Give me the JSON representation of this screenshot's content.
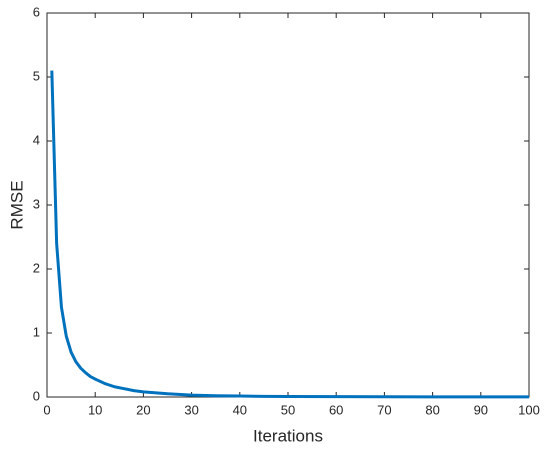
{
  "chart_data": {
    "type": "line",
    "x_label": "Iterations",
    "y_label": "RMSE",
    "x": [
      1,
      2,
      3,
      4,
      5,
      6,
      7,
      8,
      9,
      10,
      12,
      14,
      16,
      18,
      20,
      25,
      30,
      35,
      40,
      45,
      50,
      60,
      70,
      80,
      90,
      100
    ],
    "series": [
      {
        "color": "#0072bd",
        "values": [
          5.1,
          2.4,
          1.4,
          0.95,
          0.7,
          0.55,
          0.45,
          0.38,
          0.32,
          0.28,
          0.21,
          0.16,
          0.13,
          0.1,
          0.08,
          0.05,
          0.03,
          0.02,
          0.015,
          0.01,
          0.008,
          0.005,
          0.003,
          0.002,
          0.001,
          0.001
        ]
      }
    ],
    "xlim": [
      0,
      100
    ],
    "xticks": [
      0,
      10,
      20,
      30,
      40,
      50,
      60,
      70,
      80,
      90,
      100
    ],
    "ylim": [
      0,
      6
    ],
    "yticks": [
      0,
      1,
      2,
      3,
      4,
      5,
      6
    ]
  }
}
